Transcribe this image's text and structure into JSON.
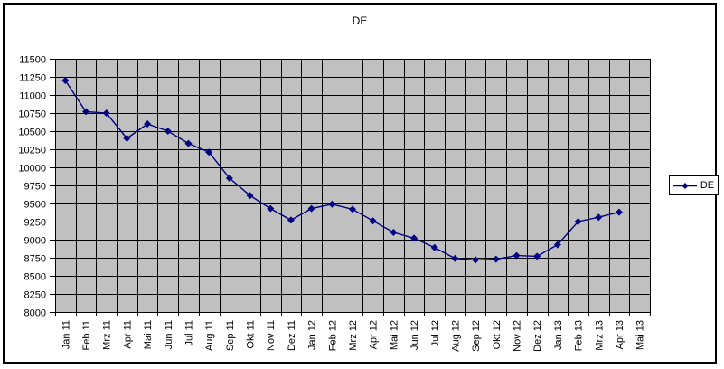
{
  "chart_data": {
    "type": "line",
    "title": "DE",
    "categories": [
      "Jan 11",
      "Feb 11",
      "Mrz 11",
      "Apr 11",
      "Mai 11",
      "Jun 11",
      "Jul 11",
      "Aug 11",
      "Sep 11",
      "Okt 11",
      "Nov 11",
      "Dez 11",
      "Jan 12",
      "Feb 12",
      "Mrz 12",
      "Apr 12",
      "Mai 12",
      "Jun 12",
      "Jul 12",
      "Aug 12",
      "Sep 12",
      "Okt 12",
      "Nov 12",
      "Dez 12",
      "Jan 13",
      "Feb 13",
      "Mrz 13",
      "Apr 13",
      "Mai 13"
    ],
    "series": [
      {
        "name": "DE",
        "values": [
          11200,
          10770,
          10750,
          10400,
          10600,
          10500,
          10330,
          10210,
          9850,
          9610,
          9430,
          9270,
          9430,
          9490,
          9420,
          9260,
          9100,
          9020,
          8890,
          8740,
          8720,
          8730,
          8780,
          8770,
          8930,
          9250,
          9310,
          9380,
          null
        ]
      }
    ],
    "ylim": [
      8000,
      11500
    ],
    "ytick_step": 250,
    "yticks": [
      11500,
      11250,
      11000,
      10750,
      10500,
      10250,
      10000,
      9750,
      9500,
      9250,
      9000,
      8750,
      8500,
      8250,
      8000
    ],
    "xlabel": "",
    "ylabel": "",
    "grid": true,
    "legend_position": "right",
    "colors": {
      "series": "#000080",
      "plot_bg": "#c0c0c0",
      "grid": "#000000",
      "text": "#000000",
      "chart_bg": "#ffffff",
      "border": "#000000"
    }
  }
}
